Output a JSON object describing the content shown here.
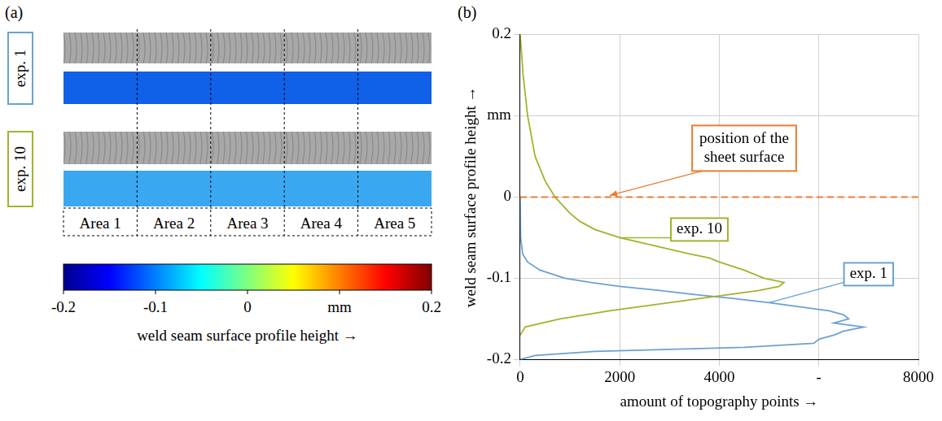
{
  "panel_a": {
    "panel_label": "(a)",
    "rows": [
      {
        "label": "exp. 1",
        "color": "#6aa2d2"
      },
      {
        "label": "exp. 10",
        "color": "#a3b32c"
      }
    ],
    "areas": [
      "Area 1",
      "Area 2",
      "Area 3",
      "Area 4",
      "Area 5"
    ],
    "colorbar": {
      "range": [
        -0.2,
        0.2
      ],
      "ticks": [
        -0.2,
        -0.1,
        0,
        {
          "value": 0.1,
          "label": "mm"
        },
        0.2
      ],
      "title": "weld seam surface profile height →"
    }
  },
  "chart_data": {
    "type": "line",
    "panel_label": "(b)",
    "x_label": "amount of topography points →",
    "y_label": "weld seam surface profile height →",
    "xlim": [
      0,
      8000
    ],
    "xticks": [
      0,
      2000,
      4000,
      {
        "value": 6000,
        "label": "-"
      },
      8000
    ],
    "ylim": [
      -0.2,
      0.2
    ],
    "yticks": [
      -0.2,
      -0.1,
      0,
      {
        "value": 0.1,
        "label": "mm"
      },
      0.2
    ],
    "grid": true,
    "series": [
      {
        "name": "exp. 10",
        "color": "#a3b32c",
        "x": [
          0,
          100,
          800,
          1800,
          3000,
          4200,
          4800,
          5200,
          5300,
          4900,
          4500,
          4000,
          3800,
          3400,
          2700,
          2000,
          1500,
          1200,
          1000,
          850,
          700,
          500,
          300,
          150,
          60,
          0
        ],
        "values": [
          -0.17,
          -0.16,
          -0.15,
          -0.14,
          -0.13,
          -0.12,
          -0.115,
          -0.11,
          -0.105,
          -0.1,
          -0.09,
          -0.08,
          -0.075,
          -0.07,
          -0.06,
          -0.05,
          -0.04,
          -0.03,
          -0.02,
          -0.01,
          0,
          0.02,
          0.05,
          0.1,
          0.15,
          0.2
        ]
      },
      {
        "name": "exp. 1",
        "color": "#6aa2d2",
        "x": [
          0,
          300,
          1500,
          4500,
          5900,
          6000,
          6300,
          6500,
          6900,
          6300,
          6600,
          6500,
          6200,
          5600,
          5000,
          4300,
          3500,
          2800,
          2000,
          1400,
          900,
          400,
          150,
          50,
          10,
          0
        ],
        "values": [
          -0.2,
          -0.195,
          -0.19,
          -0.185,
          -0.18,
          -0.175,
          -0.17,
          -0.165,
          -0.16,
          -0.155,
          -0.15,
          -0.145,
          -0.14,
          -0.135,
          -0.13,
          -0.125,
          -0.12,
          -0.115,
          -0.11,
          -0.105,
          -0.1,
          -0.09,
          -0.08,
          -0.07,
          -0.05,
          0
        ]
      }
    ],
    "annotations": [
      {
        "text": "position of the sheet surface",
        "y": 0,
        "color": "#ed7d31",
        "line_style": "dashed"
      }
    ]
  }
}
